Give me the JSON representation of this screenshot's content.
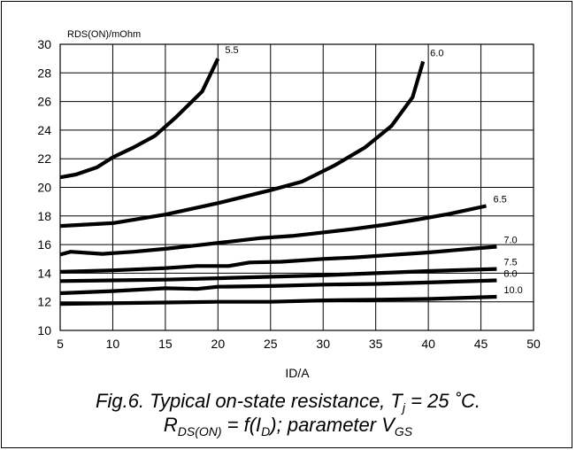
{
  "chart_data": {
    "type": "line",
    "ylabel": "RDS(ON)/mOhm",
    "xlabel": "ID/A",
    "xlim": [
      5,
      50
    ],
    "ylim": [
      10,
      30
    ],
    "xticks": [
      "5",
      "10",
      "15",
      "20",
      "25",
      "30",
      "35",
      "40",
      "45",
      "50"
    ],
    "yticks": [
      "10",
      "12",
      "14",
      "16",
      "18",
      "20",
      "22",
      "24",
      "26",
      "28",
      "30"
    ],
    "grid": true,
    "parameter": "V_GS",
    "series": [
      {
        "name": "5.5",
        "x": [
          5,
          6.5,
          8.5,
          10,
          12,
          14,
          16,
          18.5,
          20
        ],
        "y": [
          20.7,
          20.9,
          21.4,
          22.1,
          22.8,
          23.6,
          24.9,
          26.7,
          29.0
        ]
      },
      {
        "name": "6.0",
        "x": [
          5,
          10,
          15,
          20,
          25,
          28,
          31,
          34,
          36.5,
          38.5,
          39.5
        ],
        "y": [
          17.3,
          17.5,
          18.1,
          18.9,
          19.8,
          20.4,
          21.5,
          22.8,
          24.3,
          26.3,
          28.8
        ]
      },
      {
        "name": "6.5",
        "x": [
          5,
          6,
          9,
          12,
          15,
          18,
          21,
          24,
          27,
          30,
          33,
          36,
          39,
          42,
          45.5
        ],
        "y": [
          15.3,
          15.5,
          15.35,
          15.5,
          15.7,
          15.95,
          16.2,
          16.45,
          16.6,
          16.85,
          17.1,
          17.4,
          17.75,
          18.15,
          18.7
        ]
      },
      {
        "name": "7.0",
        "x": [
          5,
          10,
          15,
          18,
          21,
          23,
          26,
          30,
          33,
          36,
          40,
          44,
          46.5
        ],
        "y": [
          14.1,
          14.2,
          14.35,
          14.5,
          14.5,
          14.75,
          14.8,
          15.0,
          15.1,
          15.25,
          15.45,
          15.7,
          15.85
        ]
      },
      {
        "name": "7.5",
        "x": [
          5,
          10,
          15,
          20,
          25,
          30,
          35,
          40,
          46.5
        ],
        "y": [
          13.45,
          13.5,
          13.55,
          13.65,
          13.75,
          13.85,
          14.0,
          14.15,
          14.3
        ]
      },
      {
        "name": "8.0",
        "x": [
          5,
          10,
          15,
          18,
          20,
          25,
          30,
          35,
          40,
          46.5
        ],
        "y": [
          12.6,
          12.75,
          12.95,
          12.9,
          13.05,
          13.1,
          13.2,
          13.25,
          13.35,
          13.5
        ]
      },
      {
        "name": "10.0",
        "x": [
          5,
          10,
          15,
          20,
          25,
          30,
          35,
          40,
          46.5
        ],
        "y": [
          11.85,
          11.9,
          11.95,
          12.0,
          12.0,
          12.1,
          12.15,
          12.2,
          12.35
        ]
      }
    ]
  },
  "caption": {
    "line1_prefix": "Fig.6.   Typical on-state resistance, T",
    "line1_sub": "j",
    "line1_suffix": " = 25 ˚C.",
    "line2_a": "R",
    "line2_a_sub": "DS(ON)",
    "line2_b": " = f(I",
    "line2_b_sub": "D",
    "line2_c": "); parameter V",
    "line2_c_sub": "GS"
  }
}
